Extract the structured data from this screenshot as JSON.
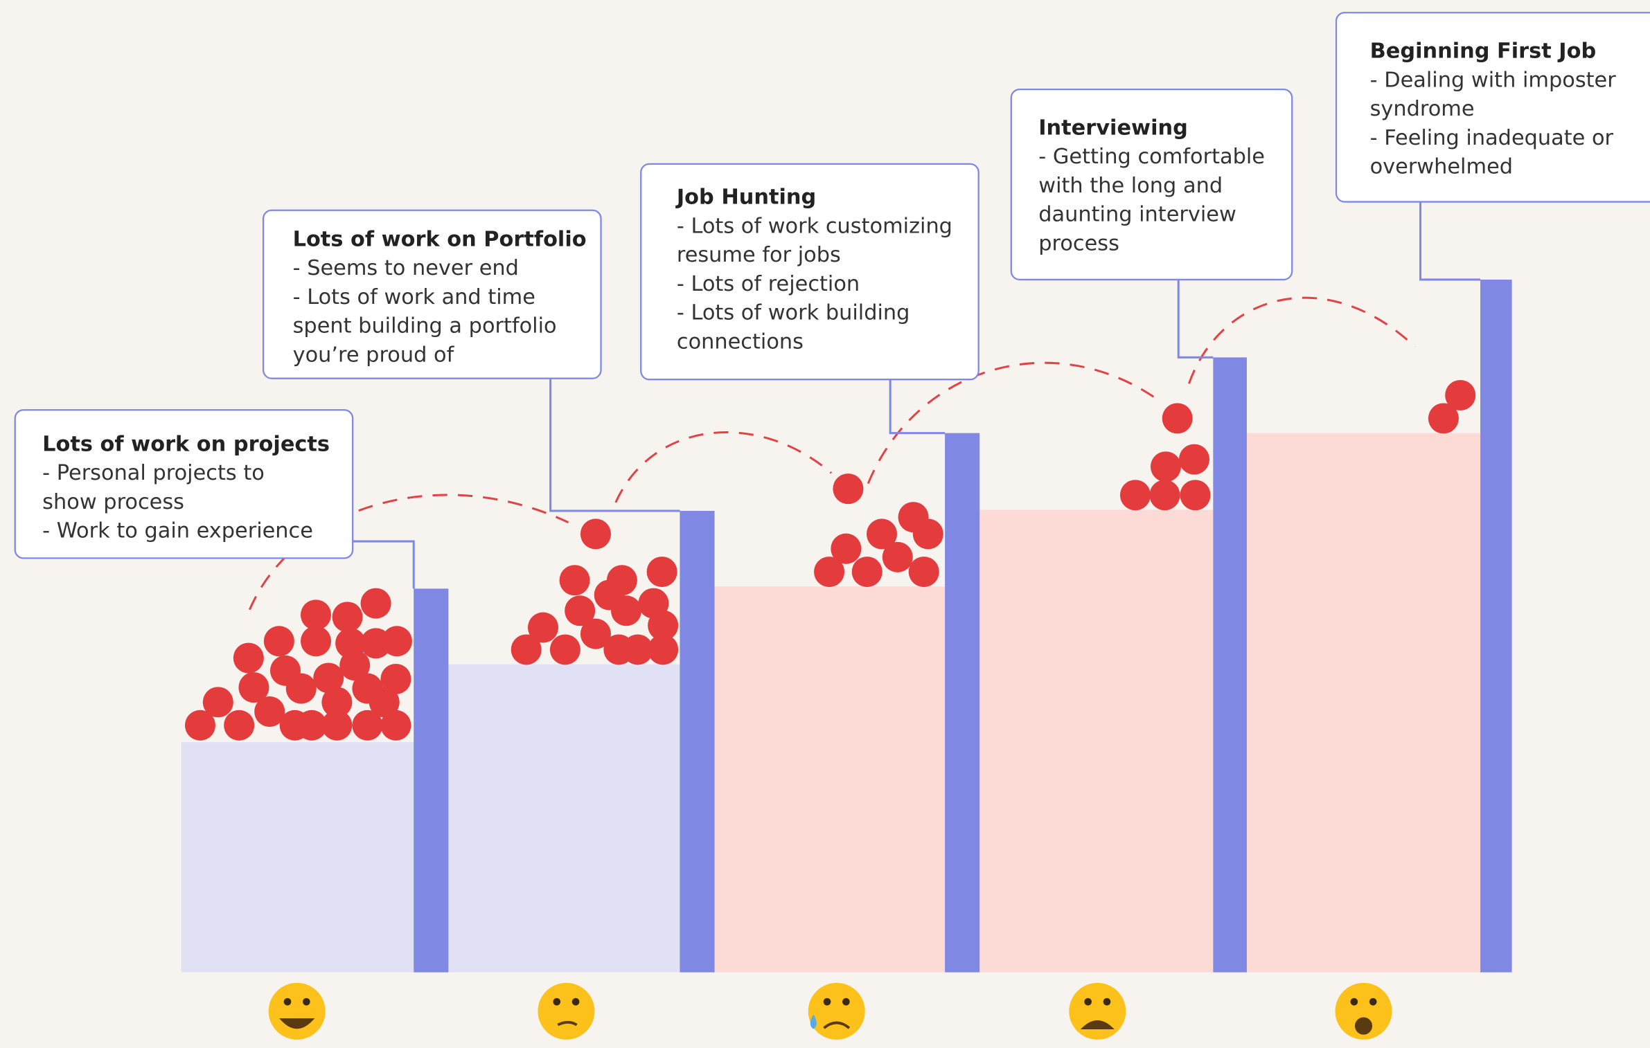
{
  "stages": [
    {
      "title": "Lots of work on projects",
      "lines": [
        "- Personal projects to",
        "show process",
        "- Work to gain experience"
      ]
    },
    {
      "title": "Lots of work on Portfolio",
      "lines": [
        "- Seems to never end",
        "- Lots of work and time",
        "spent building a portfolio",
        "you’re proud of"
      ]
    },
    {
      "title": "Job Hunting",
      "lines": [
        "- Lots of work customizing",
        "resume for jobs",
        "- Lots of rejection",
        "- Lots of work building",
        "connections"
      ]
    },
    {
      "title": "Interviewing",
      "lines": [
        "- Getting comfortable",
        "with the long and",
        "daunting interview",
        "process"
      ]
    },
    {
      "title": "Beginning First Job",
      "lines": [
        "- Dealing with imposter",
        "syndrome",
        "- Feeling inadequate or",
        "overwhelmed"
      ]
    }
  ]
}
